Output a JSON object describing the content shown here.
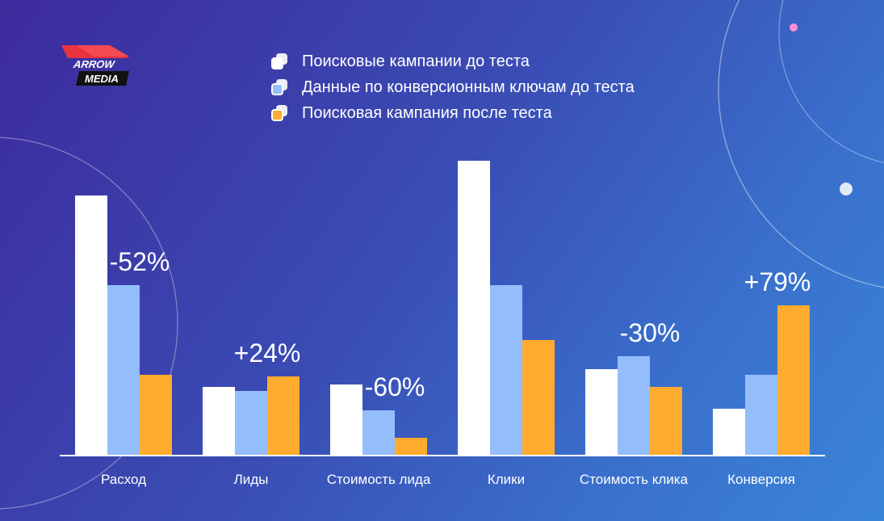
{
  "brand": {
    "line1": "ARROW",
    "line2": "MEDIA",
    "accent": "#e8323c"
  },
  "legend": [
    {
      "label": "Поисковые кампании до теста",
      "color": "#ffffff"
    },
    {
      "label": "Данные по конверсионным ключам до теста",
      "color": "#94bdfc"
    },
    {
      "label": "Поисковая кампания после теста",
      "color": "#ffab2e"
    }
  ],
  "chart_data": {
    "type": "bar",
    "categories": [
      "Расход",
      "Лиды",
      "Стоимость лида",
      "Клики",
      "Стоимость клика",
      "Конверсия"
    ],
    "series": [
      {
        "name": "Поисковые кампании до теста",
        "color": "#ffffff",
        "values": [
          322,
          85,
          88,
          365,
          107,
          58
        ]
      },
      {
        "name": "Данные по конверсионным ключам до теста",
        "color": "#94bdfc",
        "values": [
          211,
          80,
          56,
          211,
          123,
          100
        ]
      },
      {
        "name": "Поисковая кампания после теста",
        "color": "#ffab2e",
        "values": [
          100,
          98,
          22,
          143,
          85,
          186
        ]
      }
    ],
    "annotations": [
      "-52%",
      "+24%",
      "-60%",
      "",
      "-30%",
      "+79%"
    ],
    "ylim": [
      0,
      400
    ],
    "xlabel": "",
    "ylabel": "",
    "grid": false,
    "legend_position": "top-center"
  }
}
